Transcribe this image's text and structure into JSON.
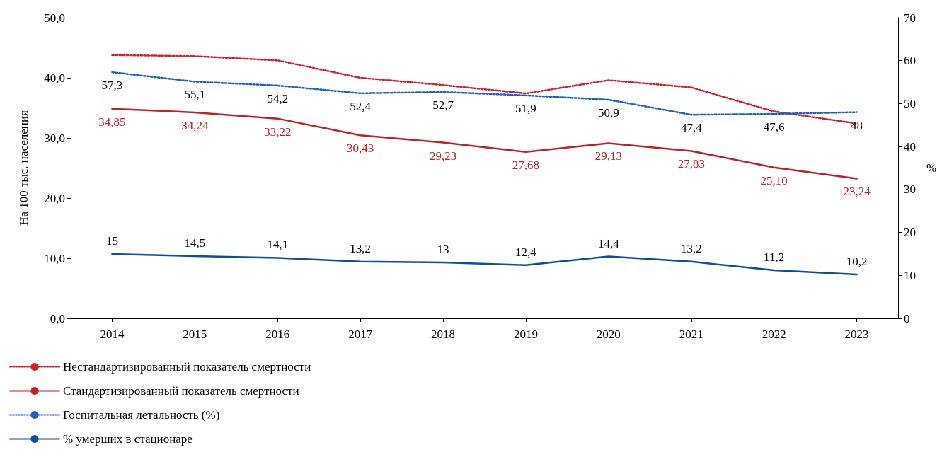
{
  "chart_data": {
    "type": "line",
    "ylabel": "На 100 тыс. населения",
    "y2label": "%",
    "categories": [
      "2014",
      "2015",
      "2016",
      "2017",
      "2018",
      "2019",
      "2020",
      "2021",
      "2022",
      "2023"
    ],
    "series": [
      {
        "name": "Нестандартизированный показатель смертности",
        "color": "#d0202e",
        "line_style": "dotted",
        "values": [
          43.8,
          43.6,
          42.9,
          40.0,
          38.8,
          37.4,
          39.6,
          38.4,
          34.4,
          32.4
        ]
      },
      {
        "name": "Стандартизированный показатель смертности",
        "color": "#c0202a",
        "line_style": "solid",
        "values": [
          34.85,
          34.24,
          33.22,
          30.43,
          29.23,
          27.68,
          29.13,
          27.83,
          25.1,
          23.24
        ],
        "value_labels": [
          "34,85",
          "34,24",
          "33,22",
          "30,43",
          "29,23",
          "27,68",
          "29,13",
          "27,83",
          "25,10",
          "23,24"
        ]
      },
      {
        "name": "Госпитальная летальность (%)",
        "color": "#1f5fbf",
        "line_style": "dotted",
        "axis": "y2",
        "values": [
          57.3,
          55.1,
          54.2,
          52.4,
          52.7,
          51.9,
          50.9,
          47.4,
          47.6,
          48
        ],
        "value_labels": [
          "57,3",
          "55,1",
          "54,2",
          "52,4",
          "52,7",
          "51,9",
          "50,9",
          "47,4",
          "47,6",
          "48"
        ]
      },
      {
        "name": "% умерших в стационаре",
        "color": "#0b4ea2",
        "line_style": "solid",
        "axis": "y2",
        "values": [
          15,
          14.5,
          14.1,
          13.2,
          13,
          12.4,
          14.4,
          13.2,
          11.2,
          10.2
        ],
        "value_labels": [
          "15",
          "14,5",
          "14,1",
          "13,2",
          "13",
          "12,4",
          "14,4",
          "13,2",
          "11,2",
          "10,2"
        ]
      }
    ],
    "ylim": [
      0,
      50
    ],
    "yticks": [
      {
        "value": 0,
        "label": "0,0"
      },
      {
        "value": 10,
        "label": "10,0"
      },
      {
        "value": 20,
        "label": "20,0"
      },
      {
        "value": 30,
        "label": "30,0"
      },
      {
        "value": 40,
        "label": "40,0"
      },
      {
        "value": 50,
        "label": "50,0"
      }
    ],
    "y2lim": [
      0,
      70
    ],
    "y2ticks": [
      0,
      10,
      20,
      30,
      40,
      50,
      60,
      70
    ],
    "marker": "none",
    "grid": false,
    "legend": "bottom left"
  }
}
